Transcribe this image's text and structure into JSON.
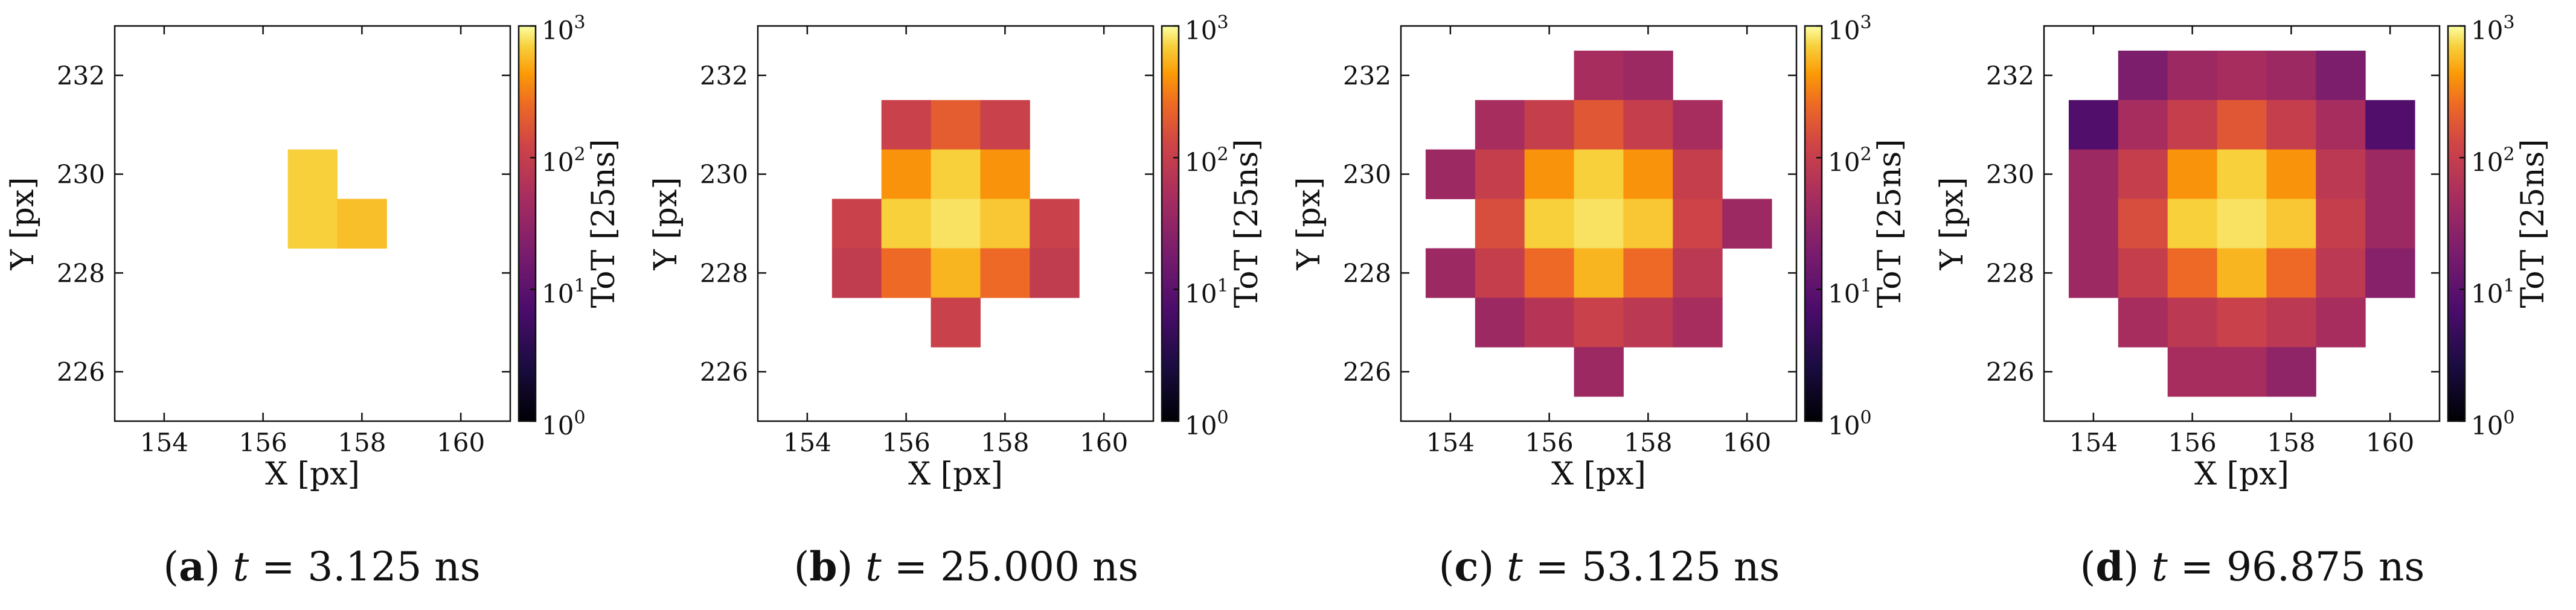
{
  "chart_data": [
    {
      "type": "heatmap",
      "panel_label": "a",
      "caption_var": "t",
      "caption_eq": " = ",
      "caption_value": "3.125",
      "caption_unit": "ns",
      "xlabel": "X [px]",
      "ylabel": "Y [px]",
      "xlim": [
        153,
        161
      ],
      "ylim": [
        225,
        233
      ],
      "xticks": [
        154,
        156,
        158,
        160
      ],
      "yticks": [
        226,
        228,
        230,
        232
      ],
      "colorbar": {
        "label": "ToT [25ns]",
        "scale": "log",
        "range": [
          1,
          1000
        ],
        "colormap": "inferno",
        "tick_labels": [
          {
            "base": "10",
            "exp": "0"
          },
          {
            "base": "10",
            "exp": "1"
          },
          {
            "base": "10",
            "exp": "2"
          },
          {
            "base": "10",
            "exp": "3"
          }
        ]
      },
      "cells": [
        {
          "x": 157,
          "y": 230,
          "v": 700
        },
        {
          "x": 157,
          "y": 229,
          "v": 700
        },
        {
          "x": 158,
          "y": 229,
          "v": 600
        }
      ]
    },
    {
      "type": "heatmap",
      "panel_label": "b",
      "caption_var": "t",
      "caption_eq": " = ",
      "caption_value": "25.000",
      "caption_unit": "ns",
      "xlabel": "X [px]",
      "ylabel": "Y [px]",
      "xlim": [
        153,
        161
      ],
      "ylim": [
        225,
        233
      ],
      "xticks": [
        154,
        156,
        158,
        160
      ],
      "yticks": [
        226,
        228,
        230,
        232
      ],
      "colorbar": {
        "label": "ToT [25ns]",
        "scale": "log",
        "range": [
          1,
          1000
        ],
        "colormap": "inferno",
        "tick_labels": [
          {
            "base": "10",
            "exp": "0"
          },
          {
            "base": "10",
            "exp": "1"
          },
          {
            "base": "10",
            "exp": "2"
          },
          {
            "base": "10",
            "exp": "3"
          }
        ]
      },
      "cells": [
        {
          "x": 156,
          "y": 231,
          "v": 110
        },
        {
          "x": 157,
          "y": 231,
          "v": 200
        },
        {
          "x": 158,
          "y": 231,
          "v": 110
        },
        {
          "x": 156,
          "y": 230,
          "v": 400
        },
        {
          "x": 157,
          "y": 230,
          "v": 700
        },
        {
          "x": 158,
          "y": 230,
          "v": 400
        },
        {
          "x": 155,
          "y": 229,
          "v": 110
        },
        {
          "x": 156,
          "y": 229,
          "v": 700
        },
        {
          "x": 157,
          "y": 229,
          "v": 800
        },
        {
          "x": 158,
          "y": 229,
          "v": 650
        },
        {
          "x": 159,
          "y": 229,
          "v": 110
        },
        {
          "x": 155,
          "y": 228,
          "v": 90
        },
        {
          "x": 156,
          "y": 228,
          "v": 250
        },
        {
          "x": 157,
          "y": 228,
          "v": 550
        },
        {
          "x": 158,
          "y": 228,
          "v": 250
        },
        {
          "x": 159,
          "y": 228,
          "v": 90
        },
        {
          "x": 157,
          "y": 227,
          "v": 110
        }
      ]
    },
    {
      "type": "heatmap",
      "panel_label": "c",
      "caption_var": "t",
      "caption_eq": " = ",
      "caption_value": "53.125",
      "caption_unit": "ns",
      "xlabel": "X [px]",
      "ylabel": "Y [px]",
      "xlim": [
        153,
        161
      ],
      "ylim": [
        225,
        233
      ],
      "xticks": [
        154,
        156,
        158,
        160
      ],
      "yticks": [
        226,
        228,
        230,
        232
      ],
      "colorbar": {
        "label": "ToT [25ns]",
        "scale": "log",
        "range": [
          1,
          1000
        ],
        "colormap": "inferno",
        "tick_labels": [
          {
            "base": "10",
            "exp": "0"
          },
          {
            "base": "10",
            "exp": "1"
          },
          {
            "base": "10",
            "exp": "2"
          },
          {
            "base": "10",
            "exp": "3"
          }
        ]
      },
      "cells": [
        {
          "x": 157,
          "y": 232,
          "v": 50
        },
        {
          "x": 158,
          "y": 232,
          "v": 40
        },
        {
          "x": 155,
          "y": 231,
          "v": 50
        },
        {
          "x": 156,
          "y": 231,
          "v": 100
        },
        {
          "x": 157,
          "y": 231,
          "v": 180
        },
        {
          "x": 158,
          "y": 231,
          "v": 100
        },
        {
          "x": 159,
          "y": 231,
          "v": 50
        },
        {
          "x": 154,
          "y": 230,
          "v": 40
        },
        {
          "x": 155,
          "y": 230,
          "v": 100
        },
        {
          "x": 156,
          "y": 230,
          "v": 400
        },
        {
          "x": 157,
          "y": 230,
          "v": 700
        },
        {
          "x": 158,
          "y": 230,
          "v": 400
        },
        {
          "x": 159,
          "y": 230,
          "v": 100
        },
        {
          "x": 155,
          "y": 229,
          "v": 150
        },
        {
          "x": 156,
          "y": 229,
          "v": 700
        },
        {
          "x": 157,
          "y": 229,
          "v": 800
        },
        {
          "x": 158,
          "y": 229,
          "v": 650
        },
        {
          "x": 159,
          "y": 229,
          "v": 120
        },
        {
          "x": 160,
          "y": 229,
          "v": 40
        },
        {
          "x": 154,
          "y": 228,
          "v": 40
        },
        {
          "x": 155,
          "y": 228,
          "v": 100
        },
        {
          "x": 156,
          "y": 228,
          "v": 250
        },
        {
          "x": 157,
          "y": 228,
          "v": 550
        },
        {
          "x": 158,
          "y": 228,
          "v": 250
        },
        {
          "x": 159,
          "y": 228,
          "v": 80
        },
        {
          "x": 155,
          "y": 227,
          "v": 40
        },
        {
          "x": 156,
          "y": 227,
          "v": 70
        },
        {
          "x": 157,
          "y": 227,
          "v": 110
        },
        {
          "x": 158,
          "y": 227,
          "v": 80
        },
        {
          "x": 159,
          "y": 227,
          "v": 50
        },
        {
          "x": 157,
          "y": 226,
          "v": 40
        }
      ]
    },
    {
      "type": "heatmap",
      "panel_label": "d",
      "caption_var": "t",
      "caption_eq": " = ",
      "caption_value": "96.875",
      "caption_unit": "ns",
      "xlabel": "X [px]",
      "ylabel": "Y [px]",
      "xlim": [
        153,
        161
      ],
      "ylim": [
        225,
        233
      ],
      "xticks": [
        154,
        156,
        158,
        160
      ],
      "yticks": [
        226,
        228,
        230,
        232
      ],
      "colorbar": {
        "label": "ToT [25ns]",
        "scale": "log",
        "range": [
          1,
          1000
        ],
        "colormap": "inferno",
        "tick_labels": [
          {
            "base": "10",
            "exp": "0"
          },
          {
            "base": "10",
            "exp": "1"
          },
          {
            "base": "10",
            "exp": "2"
          },
          {
            "base": "10",
            "exp": "3"
          }
        ]
      },
      "cells": [
        {
          "x": 155,
          "y": 232,
          "v": 20
        },
        {
          "x": 156,
          "y": 232,
          "v": 40
        },
        {
          "x": 157,
          "y": 232,
          "v": 50
        },
        {
          "x": 158,
          "y": 232,
          "v": 40
        },
        {
          "x": 159,
          "y": 232,
          "v": 20
        },
        {
          "x": 154,
          "y": 231,
          "v": 8
        },
        {
          "x": 155,
          "y": 231,
          "v": 50
        },
        {
          "x": 156,
          "y": 231,
          "v": 100
        },
        {
          "x": 157,
          "y": 231,
          "v": 180
        },
        {
          "x": 158,
          "y": 231,
          "v": 100
        },
        {
          "x": 159,
          "y": 231,
          "v": 50
        },
        {
          "x": 160,
          "y": 231,
          "v": 8
        },
        {
          "x": 154,
          "y": 230,
          "v": 40
        },
        {
          "x": 155,
          "y": 230,
          "v": 100
        },
        {
          "x": 156,
          "y": 230,
          "v": 400
        },
        {
          "x": 157,
          "y": 230,
          "v": 700
        },
        {
          "x": 158,
          "y": 230,
          "v": 400
        },
        {
          "x": 159,
          "y": 230,
          "v": 80
        },
        {
          "x": 160,
          "y": 230,
          "v": 40
        },
        {
          "x": 154,
          "y": 229,
          "v": 40
        },
        {
          "x": 155,
          "y": 229,
          "v": 150
        },
        {
          "x": 156,
          "y": 229,
          "v": 700
        },
        {
          "x": 157,
          "y": 229,
          "v": 800
        },
        {
          "x": 158,
          "y": 229,
          "v": 650
        },
        {
          "x": 159,
          "y": 229,
          "v": 100
        },
        {
          "x": 160,
          "y": 229,
          "v": 40
        },
        {
          "x": 154,
          "y": 228,
          "v": 40
        },
        {
          "x": 155,
          "y": 228,
          "v": 100
        },
        {
          "x": 156,
          "y": 228,
          "v": 250
        },
        {
          "x": 157,
          "y": 228,
          "v": 550
        },
        {
          "x": 158,
          "y": 228,
          "v": 250
        },
        {
          "x": 159,
          "y": 228,
          "v": 80
        },
        {
          "x": 160,
          "y": 228,
          "v": 25
        },
        {
          "x": 155,
          "y": 227,
          "v": 50
        },
        {
          "x": 156,
          "y": 227,
          "v": 80
        },
        {
          "x": 157,
          "y": 227,
          "v": 110
        },
        {
          "x": 158,
          "y": 227,
          "v": 80
        },
        {
          "x": 159,
          "y": 227,
          "v": 50
        },
        {
          "x": 156,
          "y": 226,
          "v": 50
        },
        {
          "x": 157,
          "y": 226,
          "v": 50
        },
        {
          "x": 158,
          "y": 226,
          "v": 30
        }
      ]
    }
  ]
}
